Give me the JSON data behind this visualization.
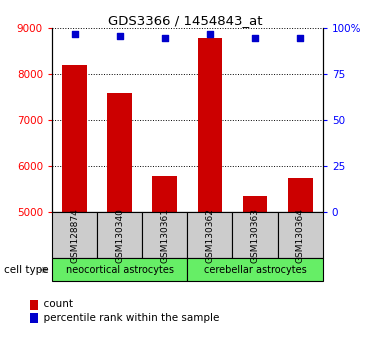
{
  "title": "GDS3366 / 1454843_at",
  "samples": [
    "GSM128874",
    "GSM130340",
    "GSM130361",
    "GSM130362",
    "GSM130363",
    "GSM130364"
  ],
  "counts": [
    8200,
    7600,
    5800,
    8800,
    5350,
    5750
  ],
  "percentiles": [
    97,
    96,
    95,
    97,
    95,
    95
  ],
  "ylim_left": [
    5000,
    9000
  ],
  "ylim_right": [
    0,
    100
  ],
  "yticks_left": [
    5000,
    6000,
    7000,
    8000,
    9000
  ],
  "yticks_right": [
    0,
    25,
    50,
    75,
    100
  ],
  "group1_label": "neocortical astrocytes",
  "group2_label": "cerebellar astrocytes",
  "group_color": "#66ee66",
  "bar_color": "#cc0000",
  "dot_color": "#0000cc",
  "bar_width": 0.55,
  "sample_box_color": "#cccccc",
  "legend_count_label": "count",
  "legend_pct_label": "percentile rank within the sample",
  "cell_type_label": "cell type"
}
